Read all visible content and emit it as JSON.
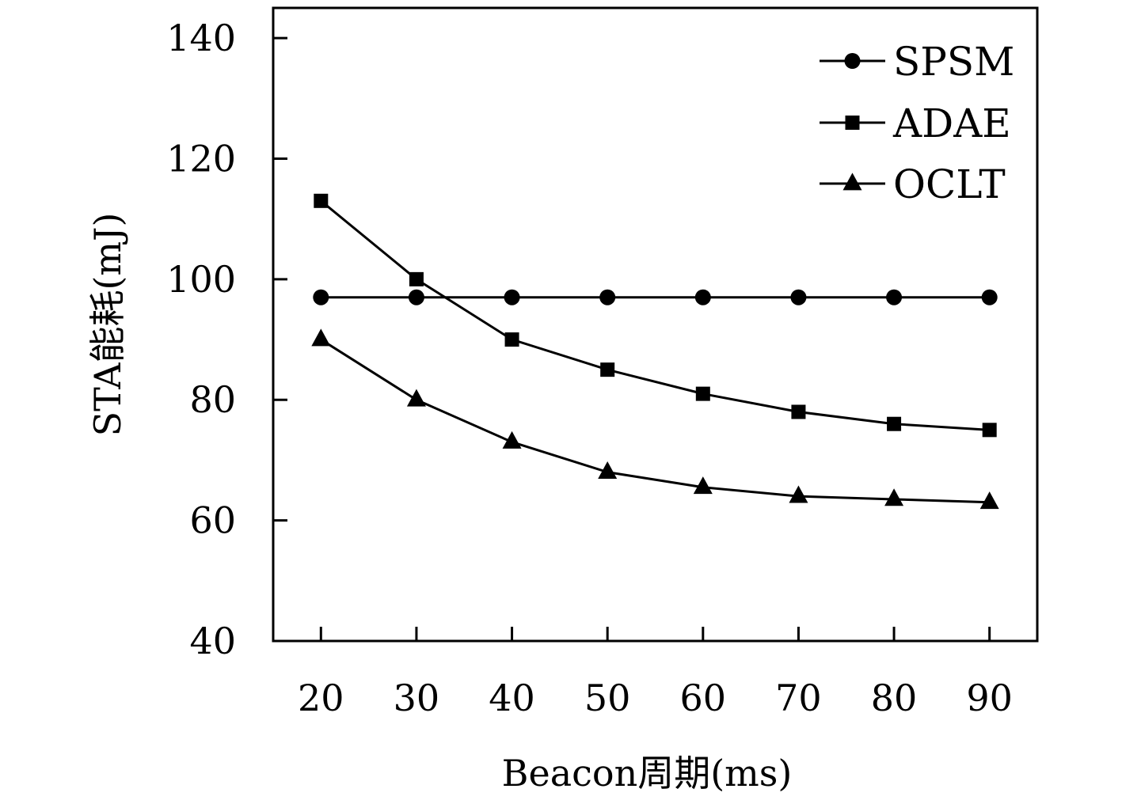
{
  "chart_data": {
    "type": "line",
    "xlabel": "Beacon周期(ms)",
    "ylabel": "STA能耗(mJ)",
    "x": [
      20,
      30,
      40,
      50,
      60,
      70,
      80,
      90
    ],
    "xlim": [
      15,
      95
    ],
    "ylim": [
      40,
      145
    ],
    "yticks": [
      40,
      60,
      80,
      100,
      120,
      140
    ],
    "xticks": [
      20,
      30,
      40,
      50,
      60,
      70,
      80,
      90
    ],
    "grid": false,
    "legend_position": "top-right",
    "series": [
      {
        "name": "SPSM",
        "marker": "circle",
        "values": [
          97,
          97,
          97,
          97,
          97,
          97,
          97,
          97
        ]
      },
      {
        "name": "ADAE",
        "marker": "square",
        "values": [
          113,
          100,
          90,
          85,
          81,
          78,
          76,
          75
        ]
      },
      {
        "name": "OCLT",
        "marker": "triangle",
        "values": [
          90,
          80,
          73,
          68,
          65.5,
          64,
          63.5,
          63
        ]
      }
    ],
    "colors": {
      "line": "#000000",
      "background": "#ffffff"
    }
  }
}
